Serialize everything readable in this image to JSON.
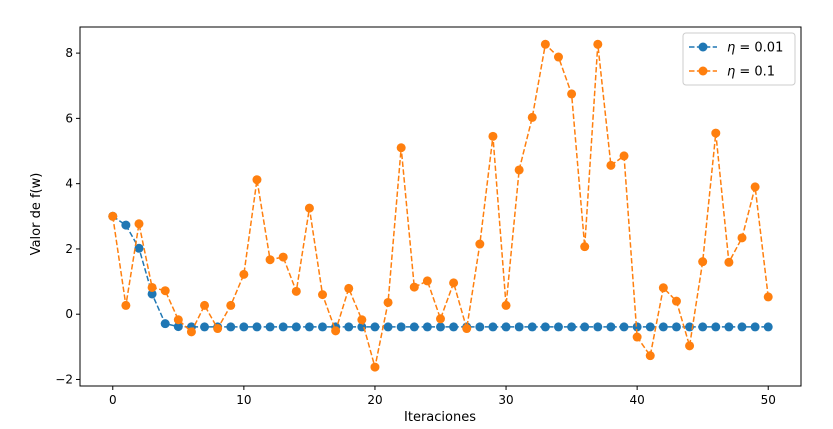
{
  "chart_data": {
    "type": "line",
    "xlabel": "Iteraciones",
    "ylabel": "Valor de f(w)",
    "xlim": [
      -2.5,
      52.5
    ],
    "ylim": [
      -2.2,
      8.8
    ],
    "xticks": [
      0,
      10,
      20,
      30,
      40,
      50
    ],
    "yticks": [
      -2,
      0,
      2,
      4,
      6,
      8
    ],
    "grid": false,
    "legend_position": "top-right",
    "x": [
      0,
      1,
      2,
      3,
      4,
      5,
      6,
      7,
      8,
      9,
      10,
      11,
      12,
      13,
      14,
      15,
      16,
      17,
      18,
      19,
      20,
      21,
      22,
      23,
      24,
      25,
      26,
      27,
      28,
      29,
      30,
      31,
      32,
      33,
      34,
      35,
      36,
      37,
      38,
      39,
      40,
      41,
      42,
      43,
      44,
      45,
      46,
      47,
      48,
      49,
      50
    ],
    "series": [
      {
        "name": "η = 0.01",
        "name_symbol": "η",
        "name_rest": " = 0.01",
        "color": "#1f77b4",
        "values": [
          3.0,
          2.73,
          2.02,
          0.62,
          -0.29,
          -0.38,
          -0.39,
          -0.39,
          -0.39,
          -0.39,
          -0.39,
          -0.39,
          -0.39,
          -0.39,
          -0.39,
          -0.39,
          -0.39,
          -0.39,
          -0.39,
          -0.39,
          -0.39,
          -0.39,
          -0.39,
          -0.39,
          -0.39,
          -0.39,
          -0.39,
          -0.39,
          -0.39,
          -0.39,
          -0.39,
          -0.39,
          -0.39,
          -0.39,
          -0.39,
          -0.39,
          -0.39,
          -0.39,
          -0.39,
          -0.39,
          -0.39,
          -0.39,
          -0.39,
          -0.39,
          -0.39,
          -0.39,
          -0.39,
          -0.39,
          -0.39,
          -0.39,
          -0.39
        ]
      },
      {
        "name": "η = 0.1",
        "name_symbol": "η",
        "name_rest": " = 0.1",
        "color": "#ff7f0e",
        "values": [
          3.0,
          0.27,
          2.77,
          0.82,
          0.72,
          -0.17,
          -0.54,
          0.27,
          -0.44,
          0.27,
          1.22,
          4.12,
          1.67,
          1.75,
          0.7,
          3.25,
          0.6,
          -0.51,
          0.79,
          -0.17,
          -1.62,
          0.36,
          5.1,
          0.83,
          1.02,
          -0.14,
          0.96,
          -0.44,
          2.15,
          5.45,
          0.27,
          4.42,
          6.03,
          8.27,
          7.88,
          6.75,
          2.07,
          8.27,
          4.56,
          4.85,
          -0.7,
          -1.27,
          0.81,
          0.4,
          -0.97,
          1.61,
          5.55,
          1.59,
          2.34,
          3.9,
          0.53
        ]
      }
    ]
  }
}
